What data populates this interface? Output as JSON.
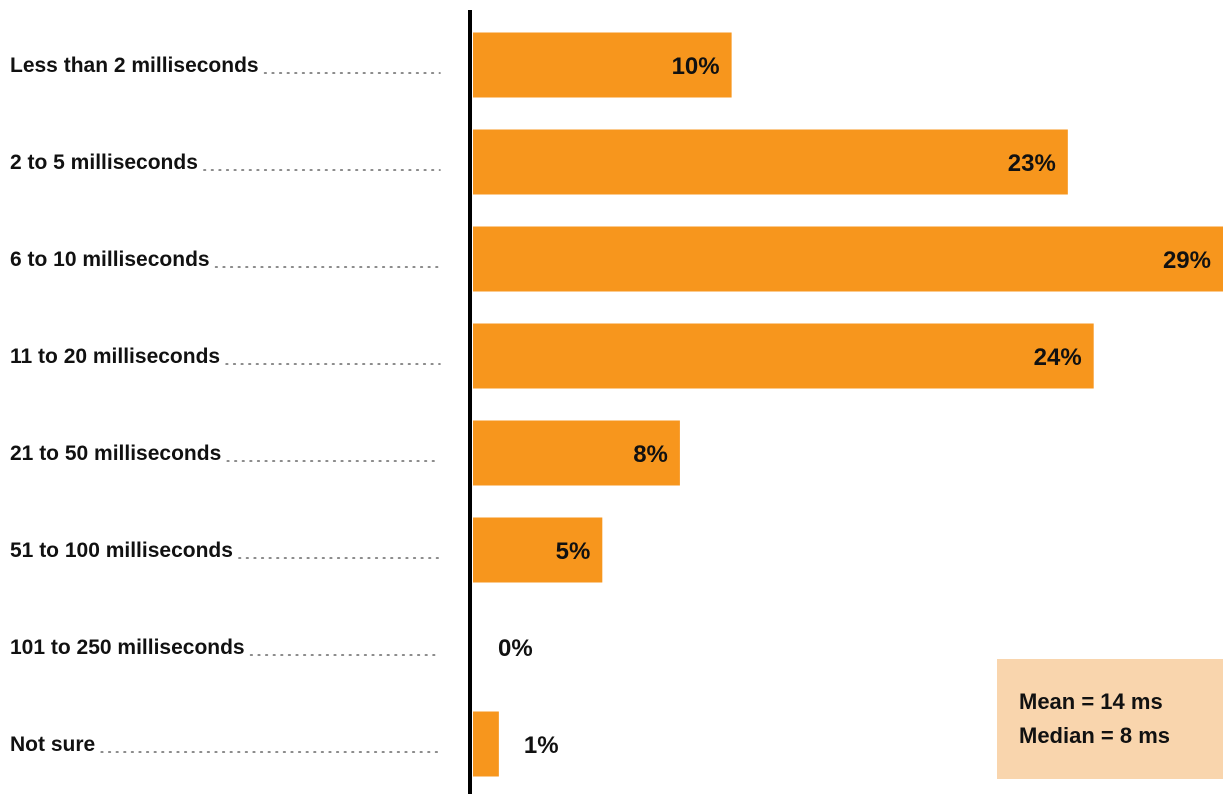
{
  "chart_data": {
    "type": "bar",
    "orientation": "horizontal",
    "categories": [
      "Less than 2 milliseconds",
      "2 to 5 milliseconds",
      "6 to 10 milliseconds",
      "11 to 20 milliseconds",
      "21 to 50 milliseconds",
      "51 to 100 milliseconds",
      "101 to 250 milliseconds",
      "Not sure"
    ],
    "values": [
      10,
      23,
      29,
      24,
      8,
      5,
      0,
      1
    ],
    "value_labels": [
      "10%",
      "23%",
      "29%",
      "24%",
      "8%",
      "5%",
      "0%",
      "1%"
    ],
    "xlim": [
      0,
      29
    ],
    "bar_color": "#f7961d",
    "axis_color": "#000000",
    "grid": false,
    "legend": "none"
  },
  "stats": {
    "mean": "Mean = 14 ms",
    "median": "Median = 8 ms",
    "background": "#f9d5ad"
  }
}
